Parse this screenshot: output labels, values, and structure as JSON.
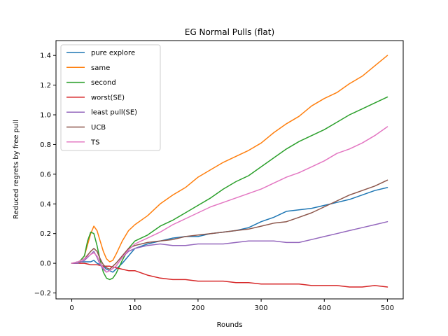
{
  "chart_data": {
    "type": "line",
    "title": "EG Normal Pulls (flat)",
    "xlabel": "Rounds",
    "ylabel": "Reduced regrets by free pull",
    "xlim": [
      -25,
      525
    ],
    "ylim": [
      -0.24,
      1.5
    ],
    "xticks": [
      0,
      100,
      200,
      300,
      400,
      500
    ],
    "xtick_labels": [
      "0",
      "100",
      "200",
      "300",
      "400",
      "500"
    ],
    "yticks": [
      -0.2,
      0.0,
      0.2,
      0.4,
      0.6,
      0.8,
      1.0,
      1.2,
      1.4
    ],
    "ytick_labels": [
      "−0.2",
      "0.0",
      "0.2",
      "0.4",
      "0.6",
      "0.8",
      "1.0",
      "1.2",
      "1.4"
    ],
    "grid": false,
    "legend": "upper-left",
    "series": [
      {
        "name": "pure explore",
        "color": "#1f77b4",
        "points": [
          [
            0,
            0.0
          ],
          [
            10,
            0.01
          ],
          [
            20,
            0.01
          ],
          [
            30,
            0.01
          ],
          [
            35,
            0.02
          ],
          [
            40,
            0.0
          ],
          [
            45,
            -0.01
          ],
          [
            50,
            -0.02
          ],
          [
            55,
            -0.04
          ],
          [
            60,
            -0.05
          ],
          [
            65,
            -0.06
          ],
          [
            70,
            -0.04
          ],
          [
            80,
            0.0
          ],
          [
            90,
            0.05
          ],
          [
            100,
            0.1
          ],
          [
            120,
            0.13
          ],
          [
            140,
            0.15
          ],
          [
            160,
            0.17
          ],
          [
            180,
            0.18
          ],
          [
            200,
            0.18
          ],
          [
            220,
            0.2
          ],
          [
            240,
            0.21
          ],
          [
            260,
            0.22
          ],
          [
            280,
            0.24
          ],
          [
            300,
            0.28
          ],
          [
            320,
            0.31
          ],
          [
            340,
            0.35
          ],
          [
            360,
            0.36
          ],
          [
            380,
            0.37
          ],
          [
            400,
            0.39
          ],
          [
            420,
            0.41
          ],
          [
            440,
            0.43
          ],
          [
            460,
            0.46
          ],
          [
            480,
            0.49
          ],
          [
            500,
            0.51
          ]
        ]
      },
      {
        "name": "same",
        "color": "#ff7f0e",
        "points": [
          [
            0,
            0.0
          ],
          [
            10,
            0.0
          ],
          [
            20,
            0.05
          ],
          [
            30,
            0.2
          ],
          [
            35,
            0.25
          ],
          [
            40,
            0.22
          ],
          [
            45,
            0.15
          ],
          [
            50,
            0.08
          ],
          [
            55,
            0.03
          ],
          [
            60,
            0.01
          ],
          [
            65,
            0.02
          ],
          [
            70,
            0.06
          ],
          [
            80,
            0.15
          ],
          [
            90,
            0.22
          ],
          [
            100,
            0.26
          ],
          [
            120,
            0.32
          ],
          [
            140,
            0.4
          ],
          [
            160,
            0.46
          ],
          [
            180,
            0.51
          ],
          [
            200,
            0.58
          ],
          [
            220,
            0.63
          ],
          [
            240,
            0.68
          ],
          [
            260,
            0.72
          ],
          [
            280,
            0.76
          ],
          [
            300,
            0.81
          ],
          [
            320,
            0.88
          ],
          [
            340,
            0.94
          ],
          [
            360,
            0.99
          ],
          [
            380,
            1.06
          ],
          [
            400,
            1.11
          ],
          [
            420,
            1.15
          ],
          [
            440,
            1.21
          ],
          [
            460,
            1.26
          ],
          [
            480,
            1.33
          ],
          [
            500,
            1.4
          ]
        ]
      },
      {
        "name": "second",
        "color": "#2ca02c",
        "points": [
          [
            0,
            0.0
          ],
          [
            10,
            0.0
          ],
          [
            20,
            0.05
          ],
          [
            25,
            0.15
          ],
          [
            30,
            0.21
          ],
          [
            35,
            0.2
          ],
          [
            40,
            0.12
          ],
          [
            45,
            0.02
          ],
          [
            50,
            -0.06
          ],
          [
            55,
            -0.1
          ],
          [
            60,
            -0.11
          ],
          [
            65,
            -0.1
          ],
          [
            70,
            -0.07
          ],
          [
            80,
            0.02
          ],
          [
            90,
            0.1
          ],
          [
            100,
            0.15
          ],
          [
            120,
            0.19
          ],
          [
            140,
            0.25
          ],
          [
            160,
            0.29
          ],
          [
            180,
            0.34
          ],
          [
            200,
            0.39
          ],
          [
            220,
            0.44
          ],
          [
            240,
            0.5
          ],
          [
            260,
            0.55
          ],
          [
            280,
            0.59
          ],
          [
            300,
            0.65
          ],
          [
            320,
            0.71
          ],
          [
            340,
            0.77
          ],
          [
            360,
            0.82
          ],
          [
            380,
            0.86
          ],
          [
            400,
            0.9
          ],
          [
            420,
            0.95
          ],
          [
            440,
            1.0
          ],
          [
            460,
            1.04
          ],
          [
            480,
            1.08
          ],
          [
            500,
            1.12
          ]
        ]
      },
      {
        "name": "worst(SE)",
        "color": "#d62728",
        "points": [
          [
            0,
            0.0
          ],
          [
            10,
            0.0
          ],
          [
            20,
            0.0
          ],
          [
            30,
            -0.01
          ],
          [
            40,
            -0.01
          ],
          [
            50,
            -0.02
          ],
          [
            60,
            -0.02
          ],
          [
            70,
            -0.03
          ],
          [
            80,
            -0.04
          ],
          [
            90,
            -0.05
          ],
          [
            100,
            -0.05
          ],
          [
            120,
            -0.08
          ],
          [
            140,
            -0.1
          ],
          [
            160,
            -0.11
          ],
          [
            180,
            -0.11
          ],
          [
            200,
            -0.12
          ],
          [
            220,
            -0.12
          ],
          [
            240,
            -0.12
          ],
          [
            260,
            -0.13
          ],
          [
            280,
            -0.13
          ],
          [
            300,
            -0.14
          ],
          [
            320,
            -0.14
          ],
          [
            340,
            -0.14
          ],
          [
            360,
            -0.14
          ],
          [
            380,
            -0.15
          ],
          [
            400,
            -0.15
          ],
          [
            420,
            -0.15
          ],
          [
            440,
            -0.16
          ],
          [
            460,
            -0.16
          ],
          [
            480,
            -0.15
          ],
          [
            500,
            -0.16
          ]
        ]
      },
      {
        "name": "least pull(SE)",
        "color": "#9467bd",
        "points": [
          [
            0,
            0.0
          ],
          [
            10,
            0.0
          ],
          [
            20,
            0.02
          ],
          [
            30,
            0.06
          ],
          [
            35,
            0.08
          ],
          [
            40,
            0.04
          ],
          [
            45,
            -0.01
          ],
          [
            50,
            -0.04
          ],
          [
            55,
            -0.06
          ],
          [
            60,
            -0.05
          ],
          [
            70,
            -0.02
          ],
          [
            80,
            0.04
          ],
          [
            90,
            0.08
          ],
          [
            100,
            0.1
          ],
          [
            120,
            0.12
          ],
          [
            140,
            0.13
          ],
          [
            160,
            0.12
          ],
          [
            180,
            0.12
          ],
          [
            200,
            0.13
          ],
          [
            220,
            0.13
          ],
          [
            240,
            0.13
          ],
          [
            260,
            0.14
          ],
          [
            280,
            0.15
          ],
          [
            300,
            0.15
          ],
          [
            320,
            0.15
          ],
          [
            340,
            0.14
          ],
          [
            360,
            0.14
          ],
          [
            380,
            0.16
          ],
          [
            400,
            0.18
          ],
          [
            420,
            0.2
          ],
          [
            440,
            0.22
          ],
          [
            460,
            0.24
          ],
          [
            480,
            0.26
          ],
          [
            500,
            0.28
          ]
        ]
      },
      {
        "name": "UCB",
        "color": "#8c564b",
        "points": [
          [
            0,
            0.0
          ],
          [
            10,
            0.01
          ],
          [
            20,
            0.03
          ],
          [
            30,
            0.08
          ],
          [
            35,
            0.1
          ],
          [
            40,
            0.08
          ],
          [
            45,
            0.03
          ],
          [
            50,
            -0.01
          ],
          [
            55,
            -0.03
          ],
          [
            60,
            -0.04
          ],
          [
            70,
            0.0
          ],
          [
            80,
            0.05
          ],
          [
            90,
            0.1
          ],
          [
            100,
            0.12
          ],
          [
            120,
            0.14
          ],
          [
            140,
            0.15
          ],
          [
            160,
            0.16
          ],
          [
            180,
            0.18
          ],
          [
            200,
            0.19
          ],
          [
            220,
            0.2
          ],
          [
            240,
            0.21
          ],
          [
            260,
            0.22
          ],
          [
            280,
            0.23
          ],
          [
            300,
            0.25
          ],
          [
            320,
            0.27
          ],
          [
            340,
            0.28
          ],
          [
            360,
            0.31
          ],
          [
            380,
            0.34
          ],
          [
            400,
            0.38
          ],
          [
            420,
            0.42
          ],
          [
            440,
            0.46
          ],
          [
            460,
            0.49
          ],
          [
            480,
            0.52
          ],
          [
            500,
            0.56
          ]
        ]
      },
      {
        "name": "TS",
        "color": "#e377c2",
        "points": [
          [
            0,
            0.0
          ],
          [
            10,
            0.01
          ],
          [
            20,
            0.03
          ],
          [
            30,
            0.06
          ],
          [
            35,
            0.07
          ],
          [
            40,
            0.05
          ],
          [
            45,
            0.0
          ],
          [
            50,
            -0.03
          ],
          [
            55,
            -0.06
          ],
          [
            60,
            -0.05
          ],
          [
            70,
            -0.02
          ],
          [
            80,
            0.04
          ],
          [
            90,
            0.09
          ],
          [
            100,
            0.13
          ],
          [
            120,
            0.17
          ],
          [
            140,
            0.21
          ],
          [
            160,
            0.26
          ],
          [
            180,
            0.3
          ],
          [
            200,
            0.34
          ],
          [
            220,
            0.38
          ],
          [
            240,
            0.41
          ],
          [
            260,
            0.44
          ],
          [
            280,
            0.47
          ],
          [
            300,
            0.5
          ],
          [
            320,
            0.54
          ],
          [
            340,
            0.58
          ],
          [
            360,
            0.61
          ],
          [
            380,
            0.65
          ],
          [
            400,
            0.69
          ],
          [
            420,
            0.74
          ],
          [
            440,
            0.77
          ],
          [
            460,
            0.81
          ],
          [
            480,
            0.86
          ],
          [
            500,
            0.92
          ]
        ]
      }
    ]
  }
}
